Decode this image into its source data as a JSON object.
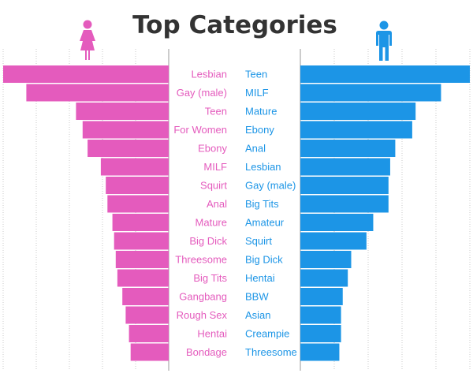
{
  "chart_data": {
    "type": "bar",
    "title": "Top Categories",
    "grid": true,
    "colors": {
      "female": "#E45BBD",
      "male": "#1C95E6"
    },
    "series": [
      {
        "icon": "female-person-icon",
        "color": "#E45BBD",
        "categories": [
          "Lesbian",
          "Gay (male)",
          "Teen",
          "For Women",
          "Ebony",
          "MILF",
          "Squirt",
          "Anal",
          "Mature",
          "Big Dick",
          "Threesome",
          "Big Tits",
          "Gangbang",
          "Rough Sex",
          "Hentai",
          "Bondage"
        ],
        "values": [
          100,
          86,
          56,
          52,
          49,
          41,
          38,
          37,
          34,
          33,
          32,
          31,
          28,
          26,
          24,
          23
        ]
      },
      {
        "icon": "male-person-icon",
        "color": "#1C95E6",
        "categories": [
          "Teen",
          "MILF",
          "Mature",
          "Ebony",
          "Anal",
          "Lesbian",
          "Gay (male)",
          "Big Tits",
          "Amateur",
          "Squirt",
          "Big Dick",
          "Hentai",
          "BBW",
          "Asian",
          "Creampie",
          "Threesome"
        ],
        "values": [
          100,
          83,
          68,
          66,
          56,
          53,
          52,
          52,
          43,
          39,
          30,
          28,
          25,
          24,
          24,
          23
        ]
      }
    ]
  }
}
